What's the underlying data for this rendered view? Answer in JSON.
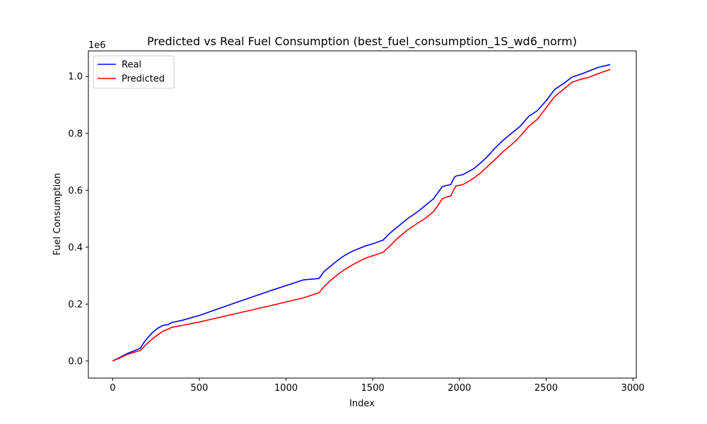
{
  "chart_data": {
    "type": "line",
    "title": "Predicted vs Real Fuel Consumption (best_fuel_consumption_1S_wd6_norm)",
    "xlabel": "Index",
    "ylabel": "Fuel Consumption",
    "y_offset_label": "1e6",
    "xlim": [
      -140,
      3020
    ],
    "ylim": [
      -60000,
      1090000
    ],
    "xticks": [
      0,
      500,
      1000,
      1500,
      2000,
      2500,
      3000
    ],
    "xtick_labels": [
      "0",
      "500",
      "1000",
      "1500",
      "2000",
      "2500",
      "3000"
    ],
    "yticks": [
      0,
      200000,
      400000,
      600000,
      800000,
      1000000
    ],
    "ytick_labels": [
      "0.0",
      "0.2",
      "0.4",
      "0.6",
      "0.8",
      "1.0"
    ],
    "grid": false,
    "legend_position": "top-left",
    "series": [
      {
        "name": "Real",
        "color": "#0000ff",
        "x": [
          0,
          40,
          80,
          120,
          160,
          180,
          200,
          230,
          260,
          290,
          320,
          340,
          400,
          500,
          700,
          900,
          1100,
          1190,
          1220,
          1260,
          1300,
          1340,
          1380,
          1420,
          1460,
          1500,
          1560,
          1600,
          1640,
          1700,
          1760,
          1800,
          1850,
          1880,
          1900,
          1920,
          1950,
          1970,
          1980,
          2020,
          2050,
          2080,
          2120,
          2160,
          2200,
          2250,
          2300,
          2350,
          2400,
          2450,
          2500,
          2550,
          2600,
          2650,
          2700,
          2750,
          2800,
          2870
        ],
        "y": [
          0,
          12000,
          25000,
          35000,
          45000,
          65000,
          80000,
          100000,
          115000,
          125000,
          128000,
          135000,
          143000,
          160000,
          203000,
          245000,
          285000,
          290000,
          315000,
          335000,
          355000,
          372000,
          385000,
          395000,
          405000,
          412000,
          425000,
          450000,
          470000,
          500000,
          525000,
          545000,
          570000,
          595000,
          612000,
          616000,
          620000,
          645000,
          650000,
          655000,
          665000,
          675000,
          695000,
          718000,
          745000,
          775000,
          800000,
          825000,
          860000,
          880000,
          915000,
          955000,
          975000,
          998000,
          1008000,
          1020000,
          1032000,
          1042000
        ]
      },
      {
        "name": "Predicted",
        "color": "#ff0000",
        "x": [
          0,
          40,
          80,
          120,
          160,
          180,
          200,
          230,
          260,
          290,
          320,
          340,
          400,
          500,
          700,
          900,
          1100,
          1190,
          1220,
          1260,
          1300,
          1340,
          1380,
          1420,
          1460,
          1500,
          1560,
          1600,
          1640,
          1700,
          1760,
          1800,
          1850,
          1880,
          1900,
          1920,
          1950,
          1970,
          1980,
          2020,
          2050,
          2080,
          2120,
          2160,
          2200,
          2250,
          2300,
          2350,
          2400,
          2450,
          2500,
          2550,
          2600,
          2650,
          2700,
          2750,
          2800,
          2870
        ],
        "y": [
          0,
          10000,
          22000,
          30000,
          37000,
          50000,
          62000,
          78000,
          92000,
          105000,
          112000,
          118000,
          125000,
          137000,
          165000,
          193000,
          222000,
          240000,
          262000,
          285000,
          305000,
          322000,
          337000,
          350000,
          362000,
          370000,
          382000,
          405000,
          430000,
          460000,
          485000,
          500000,
          525000,
          550000,
          570000,
          575000,
          580000,
          605000,
          615000,
          620000,
          630000,
          642000,
          660000,
          683000,
          705000,
          735000,
          760000,
          790000,
          825000,
          850000,
          890000,
          930000,
          955000,
          980000,
          990000,
          998000,
          1010000,
          1025000
        ]
      }
    ]
  }
}
